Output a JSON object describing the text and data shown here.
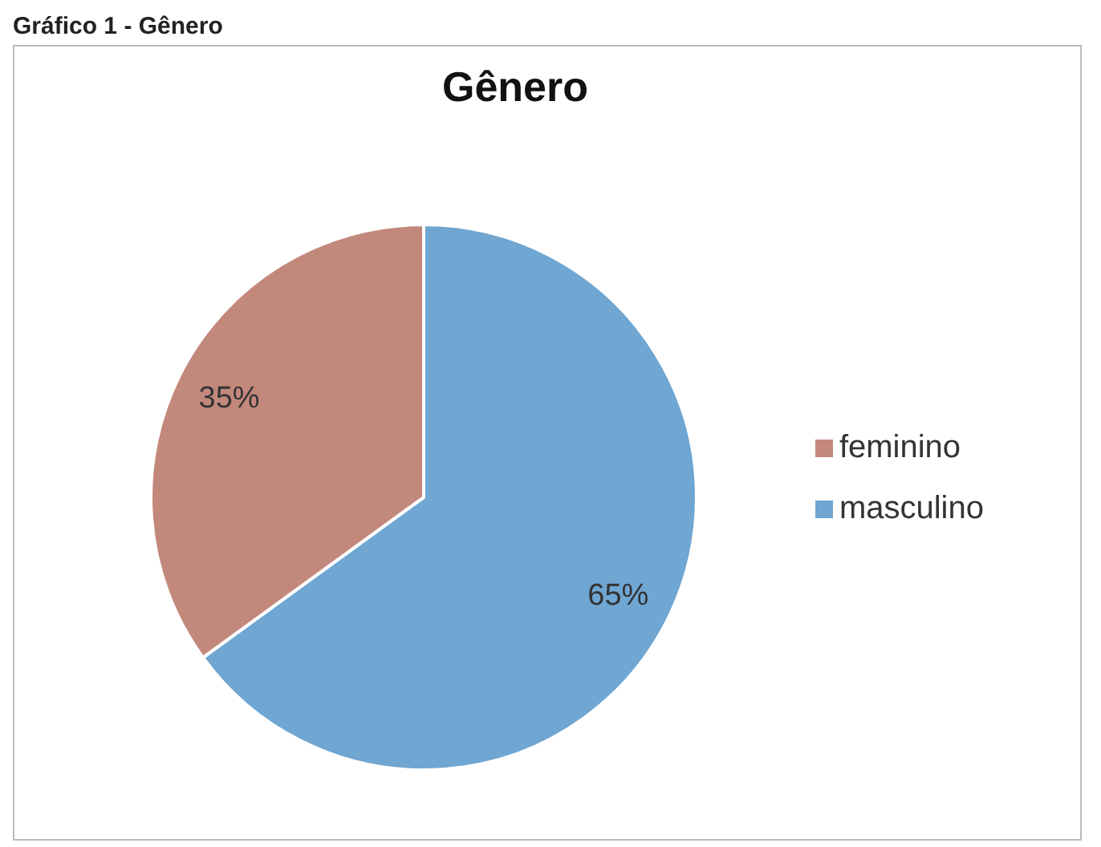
{
  "chart_data": {
    "type": "pie",
    "title": "Gênero",
    "annotations": [
      "Gráfico 1 - Gênero"
    ],
    "categories": [
      "masculino",
      "feminino"
    ],
    "values": [
      65,
      35
    ],
    "colors": [
      "#6fa6d2",
      "#c3887c"
    ],
    "value_labels": [
      "65%",
      "35%"
    ],
    "legend": "right"
  }
}
